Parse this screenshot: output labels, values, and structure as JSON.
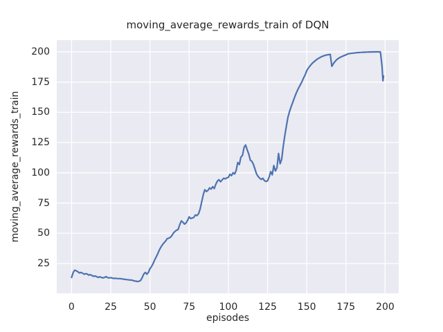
{
  "chart_data": {
    "type": "line",
    "title": "moving_average_rewards_train of DQN",
    "xlabel": "episodes",
    "ylabel": "moving_average_rewards_train",
    "x_ticks": [
      0,
      25,
      50,
      75,
      100,
      125,
      150,
      175,
      200
    ],
    "y_ticks": [
      25,
      50,
      75,
      100,
      125,
      150,
      175,
      200
    ],
    "xlim": [
      -9.45,
      208.65
    ],
    "ylim": [
      0.4,
      209.7
    ],
    "grid": true,
    "legend_position": "none",
    "axes_background_color": "#eaeaf2",
    "grid_color": "#ffffff",
    "figure_background_color": "#ffffff",
    "text_color": "#262626",
    "series": [
      {
        "name": "moving_average_rewards_train of DQN",
        "color": "#4c72b0",
        "line_width": 2.2,
        "points": [
          [
            0,
            13.5
          ],
          [
            1,
            17.5
          ],
          [
            2,
            19.5
          ],
          [
            3,
            19
          ],
          [
            4,
            18.2
          ],
          [
            5,
            17.2
          ],
          [
            6,
            17.6
          ],
          [
            7,
            17
          ],
          [
            8,
            16.2
          ],
          [
            9,
            16.6
          ],
          [
            10,
            16.3
          ],
          [
            11,
            15.4
          ],
          [
            12,
            15.8
          ],
          [
            13,
            15.1
          ],
          [
            14,
            14.4
          ],
          [
            15,
            14.7
          ],
          [
            16,
            14.1
          ],
          [
            17,
            13.5
          ],
          [
            18,
            14
          ],
          [
            19,
            13.5
          ],
          [
            20,
            13.1
          ],
          [
            21,
            13.5
          ],
          [
            22,
            14.2
          ],
          [
            23,
            13.3
          ],
          [
            24,
            13.1
          ],
          [
            25,
            13.3
          ],
          [
            26,
            12.9
          ],
          [
            27,
            12.7
          ],
          [
            28,
            12.8
          ],
          [
            29,
            12.6
          ],
          [
            30,
            12.5
          ],
          [
            31,
            12.5
          ],
          [
            32,
            12.3
          ],
          [
            33,
            12.1
          ],
          [
            34,
            11.9
          ],
          [
            35,
            11.7
          ],
          [
            36,
            11.6
          ],
          [
            37,
            11.4
          ],
          [
            38,
            11.3
          ],
          [
            39,
            11.1
          ],
          [
            40,
            10.6
          ],
          [
            41,
            10.4
          ],
          [
            42,
            10.1
          ],
          [
            43,
            10.3
          ],
          [
            44,
            11
          ],
          [
            45,
            13.2
          ],
          [
            46,
            16.2
          ],
          [
            47,
            17.6
          ],
          [
            48,
            16.2
          ],
          [
            49,
            17.6
          ],
          [
            50,
            20.8
          ],
          [
            51,
            22.5
          ],
          [
            52,
            25
          ],
          [
            53,
            28
          ],
          [
            54,
            30.5
          ],
          [
            55,
            33.2
          ],
          [
            56,
            36.2
          ],
          [
            57,
            38.6
          ],
          [
            58,
            40.6
          ],
          [
            59,
            42.2
          ],
          [
            60,
            43.6
          ],
          [
            61,
            45.6
          ],
          [
            62,
            46
          ],
          [
            63,
            46.6
          ],
          [
            64,
            48.2
          ],
          [
            65,
            50.2
          ],
          [
            66,
            51.6
          ],
          [
            67,
            52.6
          ],
          [
            68,
            53.2
          ],
          [
            69,
            57.2
          ],
          [
            70,
            60.2
          ],
          [
            71,
            59.2
          ],
          [
            72,
            57.6
          ],
          [
            73,
            58.6
          ],
          [
            74,
            60.6
          ],
          [
            75,
            63.6
          ],
          [
            76,
            62.2
          ],
          [
            77,
            62.6
          ],
          [
            78,
            63.2
          ],
          [
            79,
            65.2
          ],
          [
            80,
            64.6
          ],
          [
            81,
            66.2
          ],
          [
            82,
            70
          ],
          [
            83,
            76
          ],
          [
            84,
            82
          ],
          [
            85,
            86
          ],
          [
            86,
            84.5
          ],
          [
            87,
            85.5
          ],
          [
            88,
            87.5
          ],
          [
            89,
            86.5
          ],
          [
            90,
            88.5
          ],
          [
            91,
            87
          ],
          [
            92,
            90.5
          ],
          [
            93,
            93.2
          ],
          [
            94,
            94.3
          ],
          [
            95,
            92.6
          ],
          [
            96,
            94
          ],
          [
            97,
            95.5
          ],
          [
            98,
            95
          ],
          [
            99,
            95.8
          ],
          [
            100,
            96.2
          ],
          [
            101,
            98.8
          ],
          [
            102,
            97.6
          ],
          [
            103,
            100
          ],
          [
            104,
            99
          ],
          [
            105,
            102
          ],
          [
            106,
            108.5
          ],
          [
            107,
            106.8
          ],
          [
            108,
            113
          ],
          [
            109,
            114.3
          ],
          [
            110,
            121
          ],
          [
            111,
            123
          ],
          [
            112,
            119
          ],
          [
            113,
            115.5
          ],
          [
            114,
            110.5
          ],
          [
            115,
            109.5
          ],
          [
            116,
            107
          ],
          [
            117,
            103
          ],
          [
            118,
            99
          ],
          [
            119,
            97
          ],
          [
            120,
            95.5
          ],
          [
            121,
            94.5
          ],
          [
            122,
            95.5
          ],
          [
            123,
            93.5
          ],
          [
            124,
            92.8
          ],
          [
            125,
            93.3
          ],
          [
            126,
            96.5
          ],
          [
            127,
            101
          ],
          [
            128,
            98.3
          ],
          [
            129,
            106
          ],
          [
            130,
            101.5
          ],
          [
            131,
            104
          ],
          [
            132,
            116
          ],
          [
            133,
            107.5
          ],
          [
            134,
            111
          ],
          [
            135,
            122
          ],
          [
            136,
            130.5
          ],
          [
            137,
            138.5
          ],
          [
            138,
            146
          ],
          [
            139,
            150.5
          ],
          [
            140,
            154.5
          ],
          [
            141,
            158
          ],
          [
            142,
            161.5
          ],
          [
            143,
            165
          ],
          [
            144,
            168
          ],
          [
            145,
            170.5
          ],
          [
            146,
            173
          ],
          [
            147,
            175.5
          ],
          [
            148,
            178.5
          ],
          [
            149,
            181
          ],
          [
            150,
            184.5
          ],
          [
            151,
            186.5
          ],
          [
            152,
            188.3
          ],
          [
            153,
            189.8
          ],
          [
            154,
            191.1
          ],
          [
            155,
            192.2
          ],
          [
            156,
            193.3
          ],
          [
            157,
            194.2
          ],
          [
            158,
            195
          ],
          [
            159,
            195.7
          ],
          [
            160,
            196.3
          ],
          [
            161,
            196.8
          ],
          [
            162,
            197.2
          ],
          [
            163,
            197.5
          ],
          [
            164,
            197.7
          ],
          [
            165,
            197.9
          ],
          [
            166,
            188
          ],
          [
            167,
            190.3
          ],
          [
            168,
            192
          ],
          [
            169,
            193.4
          ],
          [
            170,
            194.5
          ],
          [
            171,
            195.2
          ],
          [
            172,
            195.9
          ],
          [
            173,
            196.5
          ],
          [
            174,
            197
          ],
          [
            175,
            197.5
          ],
          [
            176,
            198.2
          ],
          [
            177,
            198.5
          ],
          [
            178,
            198.7
          ],
          [
            179,
            198.9
          ],
          [
            180,
            199
          ],
          [
            181,
            199.2
          ],
          [
            182,
            199.3
          ],
          [
            183,
            199.4
          ],
          [
            184,
            199.5
          ],
          [
            185,
            199.6
          ],
          [
            186,
            199.7
          ],
          [
            187,
            199.7
          ],
          [
            188,
            199.8
          ],
          [
            189,
            199.8
          ],
          [
            190,
            199.9
          ],
          [
            191,
            199.9
          ],
          [
            192,
            199.9
          ],
          [
            193,
            200
          ],
          [
            194,
            200
          ],
          [
            195,
            200
          ],
          [
            196,
            200
          ],
          [
            197,
            199.9
          ],
          [
            198,
            188
          ],
          [
            198.6,
            176
          ],
          [
            199,
            180
          ]
        ]
      }
    ]
  }
}
